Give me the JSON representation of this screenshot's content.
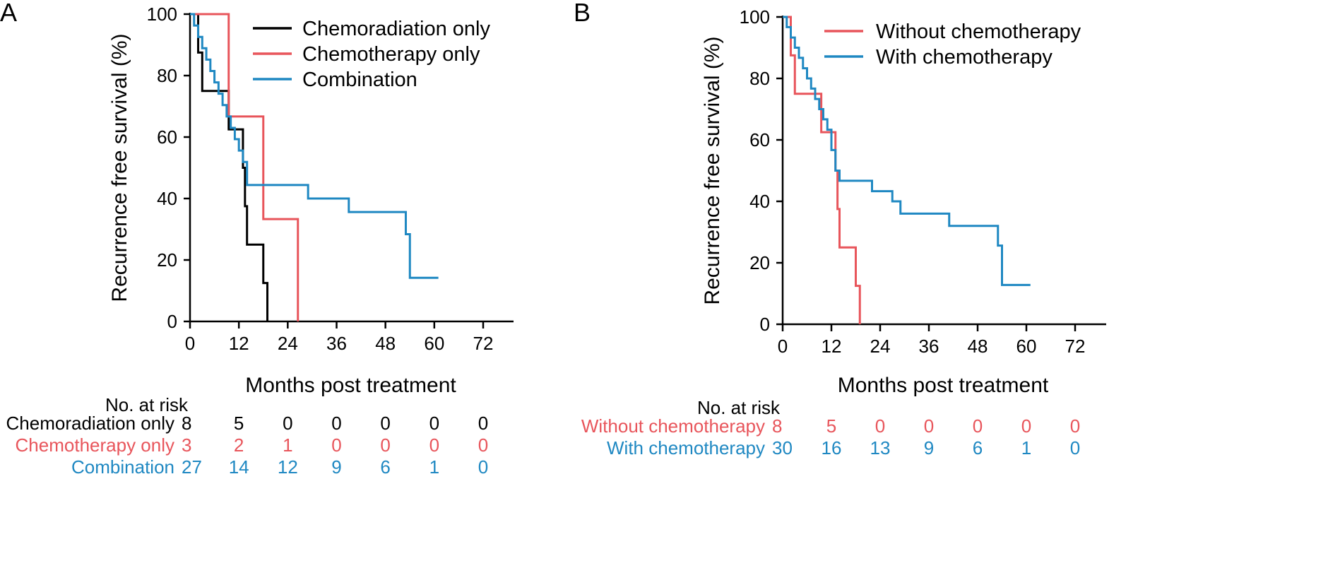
{
  "chart_data": [
    {
      "panel_label": "A",
      "type": "line",
      "step": "post",
      "xlabel": "Months post treatment",
      "ylabel": "Recurrence free survival (%)",
      "xlim": [
        0,
        76
      ],
      "ylim": [
        0,
        100
      ],
      "xticks": [
        0,
        12,
        24,
        36,
        48,
        60,
        72
      ],
      "yticks": [
        0,
        20,
        40,
        60,
        80,
        100
      ],
      "legend_position": "top-right",
      "series": [
        {
          "name": "Chemoradiation only",
          "color": "#000000",
          "x": [
            0,
            2,
            3,
            9,
            9.5,
            12,
            13,
            13.5,
            14,
            18,
            19
          ],
          "y": [
            100,
            87.5,
            75,
            75,
            62.5,
            62.5,
            50,
            37.5,
            25,
            12.5,
            0
          ]
        },
        {
          "name": "Chemotherapy only",
          "color": "#e8555b",
          "x": [
            0,
            8.5,
            9.5,
            18,
            26.5
          ],
          "y": [
            100,
            100,
            66.7,
            33.3,
            0
          ]
        },
        {
          "name": "Combination",
          "color": "#1f88c2",
          "x": [
            0,
            1,
            2,
            3,
            4,
            5,
            6,
            7,
            8,
            9,
            10,
            11,
            12,
            13,
            14,
            29,
            39,
            53,
            54,
            61
          ],
          "y": [
            100,
            96.3,
            92.6,
            88.9,
            85.2,
            81.5,
            77.8,
            74.1,
            70.4,
            66.7,
            63,
            59.3,
            55.6,
            51.9,
            44.4,
            40,
            35.6,
            28.4,
            14.2,
            14.2
          ]
        }
      ],
      "risk_table": {
        "title": "No. at risk",
        "times": [
          0,
          12,
          24,
          36,
          48,
          60,
          72
        ],
        "rows": [
          {
            "name": "Chemoradiation only",
            "color": "#000000",
            "counts": [
              "8",
              "5",
              "0",
              "0",
              "0",
              "0",
              "0"
            ]
          },
          {
            "name": "Chemotherapy only",
            "color": "#e8555b",
            "counts": [
              "3",
              "2",
              "1",
              "0",
              "0",
              "0",
              "0"
            ]
          },
          {
            "name": "Combination",
            "color": "#1f88c2",
            "counts": [
              "27",
              "14",
              "12",
              "9",
              "6",
              "1",
              "0"
            ]
          }
        ]
      }
    },
    {
      "panel_label": "B",
      "type": "line",
      "step": "post",
      "xlabel": "Months post treatment",
      "ylabel": "Recurrence free survival (%)",
      "xlim": [
        0,
        76
      ],
      "ylim": [
        0,
        100
      ],
      "xticks": [
        0,
        12,
        24,
        36,
        48,
        60,
        72
      ],
      "yticks": [
        0,
        20,
        40,
        60,
        80,
        100
      ],
      "legend_position": "top-right",
      "series": [
        {
          "name": "Without chemotherapy",
          "color": "#e8555b",
          "x": [
            0,
            2,
            3,
            9,
            9.5,
            12,
            13,
            13.5,
            14,
            18,
            19
          ],
          "y": [
            100,
            87.5,
            75,
            75,
            62.5,
            62.5,
            50,
            37.5,
            25,
            12.5,
            0
          ]
        },
        {
          "name": "With chemotherapy",
          "color": "#1f88c2",
          "x": [
            0,
            1,
            2,
            3,
            4,
            5,
            6,
            7,
            8,
            9,
            10,
            11,
            12,
            13,
            14,
            22,
            27,
            29,
            41,
            53,
            54,
            61
          ],
          "y": [
            100,
            96.7,
            93.3,
            90,
            86.7,
            83.3,
            80,
            76.7,
            73.3,
            70,
            66.7,
            63.3,
            56.7,
            50,
            46.7,
            43.3,
            40,
            36,
            32,
            25.6,
            12.8,
            12.8
          ]
        }
      ],
      "risk_table": {
        "title": "No. at risk",
        "times": [
          0,
          12,
          24,
          36,
          48,
          60,
          72
        ],
        "rows": [
          {
            "name": "Without chemotherapy",
            "color": "#e8555b",
            "counts": [
              "8",
              "5",
              "0",
              "0",
              "0",
              "0",
              "0"
            ]
          },
          {
            "name": "With chemotherapy",
            "color": "#1f88c2",
            "counts": [
              "30",
              "16",
              "13",
              "9",
              "6",
              "1",
              "0"
            ]
          }
        ]
      }
    }
  ]
}
